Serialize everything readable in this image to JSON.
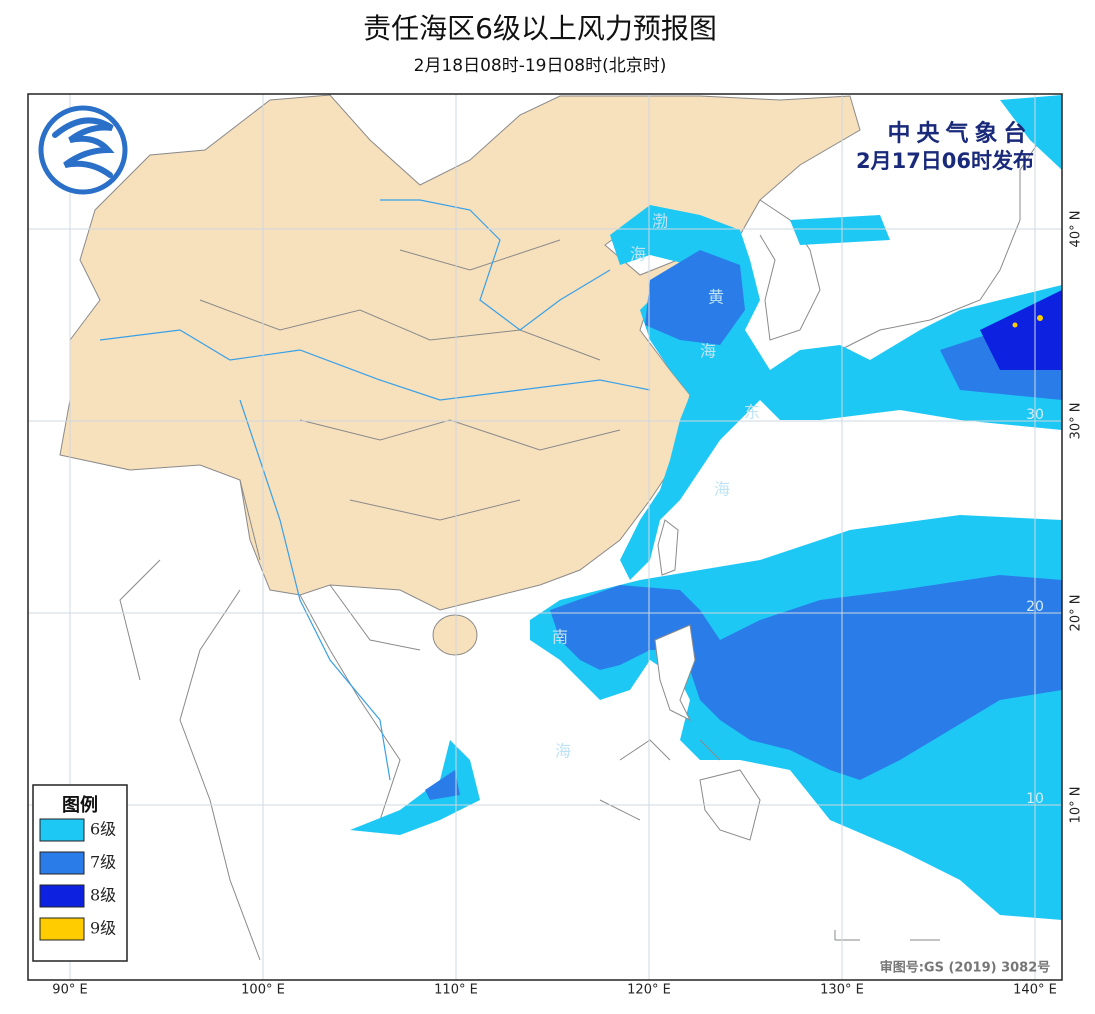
{
  "header": {
    "title": "责任海区6级以上风力预报图",
    "subtitle": "2月18日08时-19日08时(北京时)"
  },
  "publisher": {
    "name": "中央气象台",
    "issued": "2月17日06时发布"
  },
  "legend": {
    "title": "图例",
    "items": [
      {
        "label": "6级",
        "color": "#1ec8f5"
      },
      {
        "label": "7级",
        "color": "#2a7de9"
      },
      {
        "label": "8级",
        "color": "#0d22e0"
      },
      {
        "label": "9级",
        "color": "#ffcc00"
      }
    ]
  },
  "grid": {
    "lon": [
      {
        "value": 90,
        "label": "90° E"
      },
      {
        "value": 100,
        "label": "100° E"
      },
      {
        "value": 110,
        "label": "110° E"
      },
      {
        "value": 120,
        "label": "120° E"
      },
      {
        "value": 130,
        "label": "130° E"
      },
      {
        "value": 140,
        "label": "140° E"
      }
    ],
    "lat": [
      {
        "value": 40,
        "label": "40° N"
      },
      {
        "value": 30,
        "label": "30° N"
      },
      {
        "value": 20,
        "label": "20° N"
      },
      {
        "value": 10,
        "label": "10° N"
      }
    ],
    "inner_labels": [
      30,
      20,
      10
    ]
  },
  "seas": [
    "渤",
    "海",
    "黄",
    "海",
    "东",
    "海",
    "南",
    "海"
  ],
  "approval": "审图号:GS (2019) 3082号"
}
